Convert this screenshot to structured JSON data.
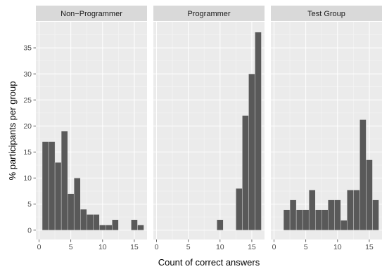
{
  "chart_data": {
    "type": "bar",
    "xlabel": "Count of correct answers",
    "ylabel": "% participants per group",
    "xlim": [
      -0.5,
      17
    ],
    "ylim": [
      -1.8,
      40
    ],
    "x_ticks": [
      0,
      5,
      10,
      15
    ],
    "y_ticks": [
      0,
      5,
      10,
      15,
      20,
      25,
      30,
      35
    ],
    "grid": true,
    "bin_width": 1,
    "facets": [
      {
        "name": "Non−Programmer",
        "bins": [
          1,
          2,
          3,
          4,
          5,
          6,
          7,
          8,
          9,
          10,
          11,
          12,
          13,
          14,
          15,
          16
        ],
        "values": [
          17,
          17,
          13,
          19,
          7,
          10,
          4,
          3,
          3,
          1,
          1,
          2,
          0,
          0,
          2,
          1
        ]
      },
      {
        "name": "Programmer",
        "bins": [
          10,
          13,
          14,
          15,
          16
        ],
        "values": [
          2,
          8,
          22,
          30,
          38
        ]
      },
      {
        "name": "Test Group",
        "bins": [
          2,
          3,
          4,
          5,
          6,
          7,
          8,
          9,
          10,
          11,
          12,
          13,
          14,
          15,
          16
        ],
        "values": [
          3.9,
          5.8,
          3.9,
          3.9,
          7.7,
          3.9,
          3.9,
          5.8,
          5.8,
          1.9,
          7.7,
          7.7,
          21.2,
          13.5,
          5.8
        ]
      }
    ]
  }
}
